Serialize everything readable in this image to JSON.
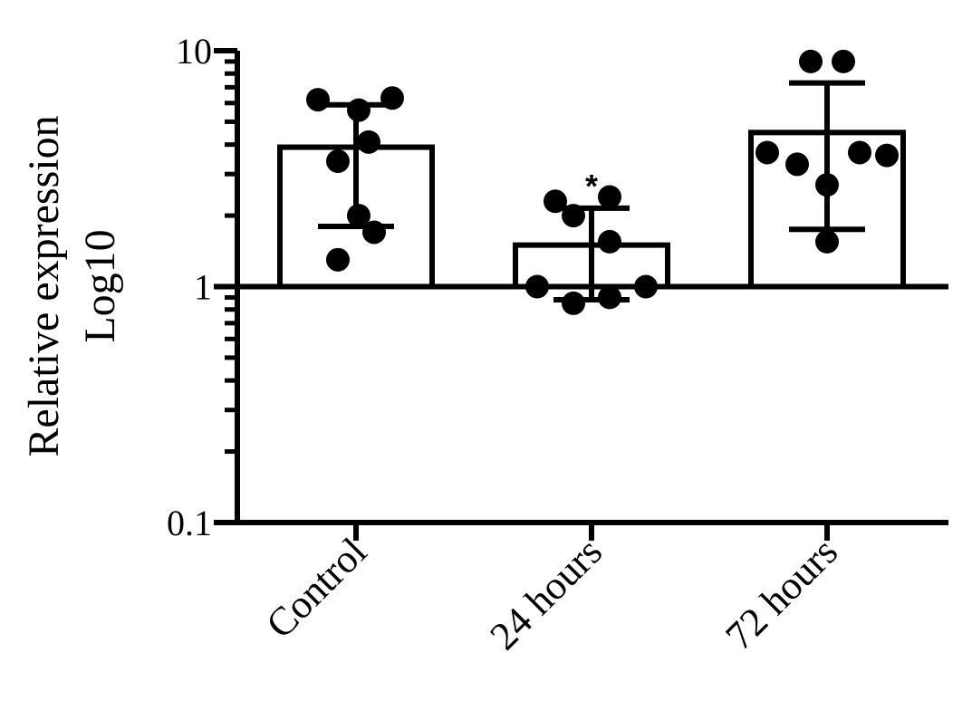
{
  "chart_data": {
    "type": "bar",
    "scale": "log10",
    "ylim": [
      0.1,
      10
    ],
    "ylabel_lines": [
      "Relative expression",
      "Log10"
    ],
    "xlabel": "",
    "yticks": [
      {
        "value": 10,
        "label": "10"
      },
      {
        "value": 1,
        "label": "1"
      },
      {
        "value": 0.1,
        "label": "0.1"
      }
    ],
    "reference_line": 1,
    "grid": false,
    "legend": "none",
    "categories": [
      "Control",
      "24 hours",
      "72 hours"
    ],
    "values": [
      3.9,
      1.5,
      4.5
    ],
    "error_bars": [
      {
        "lower": 1.8,
        "upper": 5.9
      },
      {
        "lower": 0.88,
        "upper": 2.15
      },
      {
        "lower": 1.75,
        "upper": 7.3
      }
    ],
    "points": [
      [
        6.2,
        6.3,
        5.6,
        4.1,
        3.4,
        2.0,
        1.7,
        1.3
      ],
      [
        2.3,
        2.4,
        2.0,
        1.55,
        1.0,
        1.0,
        0.9,
        0.85
      ],
      [
        9.0,
        9.0,
        3.7,
        3.6,
        3.7,
        3.3,
        2.7,
        1.55
      ]
    ],
    "annotations": [
      {
        "category": "24 hours",
        "text": "*",
        "y": 2.8
      }
    ],
    "colors": {
      "bar_fill": "#ffffff",
      "stroke": "#000000",
      "points": "#000000"
    }
  }
}
